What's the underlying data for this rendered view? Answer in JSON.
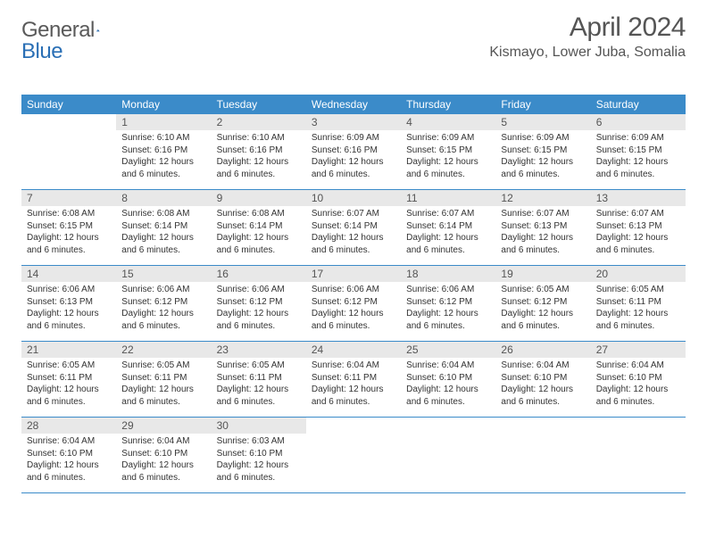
{
  "brand": {
    "text1": "General",
    "text2": "Blue"
  },
  "title": "April 2024",
  "location": "Kismayo, Lower Juba, Somalia",
  "dayNames": [
    "Sunday",
    "Monday",
    "Tuesday",
    "Wednesday",
    "Thursday",
    "Friday",
    "Saturday"
  ],
  "colors": {
    "headerBar": "#3b8bc9",
    "dayNumBg": "#e8e8e8",
    "text": "#333333",
    "titleText": "#555555"
  },
  "layout": {
    "firstDayOffset": 1,
    "daysInMonth": 30,
    "columns": 7
  },
  "days": [
    {
      "n": 1,
      "sunrise": "6:10 AM",
      "sunset": "6:16 PM",
      "daylight": "12 hours and 6 minutes."
    },
    {
      "n": 2,
      "sunrise": "6:10 AM",
      "sunset": "6:16 PM",
      "daylight": "12 hours and 6 minutes."
    },
    {
      "n": 3,
      "sunrise": "6:09 AM",
      "sunset": "6:16 PM",
      "daylight": "12 hours and 6 minutes."
    },
    {
      "n": 4,
      "sunrise": "6:09 AM",
      "sunset": "6:15 PM",
      "daylight": "12 hours and 6 minutes."
    },
    {
      "n": 5,
      "sunrise": "6:09 AM",
      "sunset": "6:15 PM",
      "daylight": "12 hours and 6 minutes."
    },
    {
      "n": 6,
      "sunrise": "6:09 AM",
      "sunset": "6:15 PM",
      "daylight": "12 hours and 6 minutes."
    },
    {
      "n": 7,
      "sunrise": "6:08 AM",
      "sunset": "6:15 PM",
      "daylight": "12 hours and 6 minutes."
    },
    {
      "n": 8,
      "sunrise": "6:08 AM",
      "sunset": "6:14 PM",
      "daylight": "12 hours and 6 minutes."
    },
    {
      "n": 9,
      "sunrise": "6:08 AM",
      "sunset": "6:14 PM",
      "daylight": "12 hours and 6 minutes."
    },
    {
      "n": 10,
      "sunrise": "6:07 AM",
      "sunset": "6:14 PM",
      "daylight": "12 hours and 6 minutes."
    },
    {
      "n": 11,
      "sunrise": "6:07 AM",
      "sunset": "6:14 PM",
      "daylight": "12 hours and 6 minutes."
    },
    {
      "n": 12,
      "sunrise": "6:07 AM",
      "sunset": "6:13 PM",
      "daylight": "12 hours and 6 minutes."
    },
    {
      "n": 13,
      "sunrise": "6:07 AM",
      "sunset": "6:13 PM",
      "daylight": "12 hours and 6 minutes."
    },
    {
      "n": 14,
      "sunrise": "6:06 AM",
      "sunset": "6:13 PM",
      "daylight": "12 hours and 6 minutes."
    },
    {
      "n": 15,
      "sunrise": "6:06 AM",
      "sunset": "6:12 PM",
      "daylight": "12 hours and 6 minutes."
    },
    {
      "n": 16,
      "sunrise": "6:06 AM",
      "sunset": "6:12 PM",
      "daylight": "12 hours and 6 minutes."
    },
    {
      "n": 17,
      "sunrise": "6:06 AM",
      "sunset": "6:12 PM",
      "daylight": "12 hours and 6 minutes."
    },
    {
      "n": 18,
      "sunrise": "6:06 AM",
      "sunset": "6:12 PM",
      "daylight": "12 hours and 6 minutes."
    },
    {
      "n": 19,
      "sunrise": "6:05 AM",
      "sunset": "6:12 PM",
      "daylight": "12 hours and 6 minutes."
    },
    {
      "n": 20,
      "sunrise": "6:05 AM",
      "sunset": "6:11 PM",
      "daylight": "12 hours and 6 minutes."
    },
    {
      "n": 21,
      "sunrise": "6:05 AM",
      "sunset": "6:11 PM",
      "daylight": "12 hours and 6 minutes."
    },
    {
      "n": 22,
      "sunrise": "6:05 AM",
      "sunset": "6:11 PM",
      "daylight": "12 hours and 6 minutes."
    },
    {
      "n": 23,
      "sunrise": "6:05 AM",
      "sunset": "6:11 PM",
      "daylight": "12 hours and 6 minutes."
    },
    {
      "n": 24,
      "sunrise": "6:04 AM",
      "sunset": "6:11 PM",
      "daylight": "12 hours and 6 minutes."
    },
    {
      "n": 25,
      "sunrise": "6:04 AM",
      "sunset": "6:10 PM",
      "daylight": "12 hours and 6 minutes."
    },
    {
      "n": 26,
      "sunrise": "6:04 AM",
      "sunset": "6:10 PM",
      "daylight": "12 hours and 6 minutes."
    },
    {
      "n": 27,
      "sunrise": "6:04 AM",
      "sunset": "6:10 PM",
      "daylight": "12 hours and 6 minutes."
    },
    {
      "n": 28,
      "sunrise": "6:04 AM",
      "sunset": "6:10 PM",
      "daylight": "12 hours and 6 minutes."
    },
    {
      "n": 29,
      "sunrise": "6:04 AM",
      "sunset": "6:10 PM",
      "daylight": "12 hours and 6 minutes."
    },
    {
      "n": 30,
      "sunrise": "6:03 AM",
      "sunset": "6:10 PM",
      "daylight": "12 hours and 6 minutes."
    }
  ],
  "labels": {
    "sunrise": "Sunrise:",
    "sunset": "Sunset:",
    "daylight": "Daylight:"
  }
}
